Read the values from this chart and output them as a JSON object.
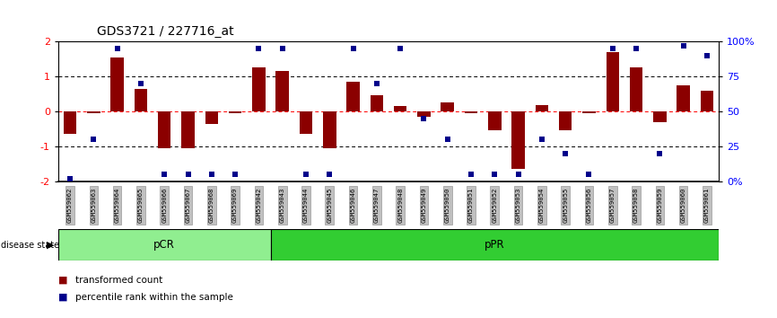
{
  "title": "GDS3721 / 227716_at",
  "samples": [
    "GSM559062",
    "GSM559063",
    "GSM559064",
    "GSM559065",
    "GSM559066",
    "GSM559067",
    "GSM559068",
    "GSM559069",
    "GSM559042",
    "GSM559043",
    "GSM559044",
    "GSM559045",
    "GSM559046",
    "GSM559047",
    "GSM559048",
    "GSM559049",
    "GSM559050",
    "GSM559051",
    "GSM559052",
    "GSM559053",
    "GSM559054",
    "GSM559055",
    "GSM559056",
    "GSM559057",
    "GSM559058",
    "GSM559059",
    "GSM559060",
    "GSM559061"
  ],
  "bar_values": [
    -0.65,
    -0.05,
    1.55,
    0.65,
    -1.05,
    -1.05,
    -0.35,
    -0.05,
    1.25,
    1.15,
    -0.65,
    -1.05,
    0.85,
    0.45,
    0.15,
    -0.15,
    0.25,
    -0.05,
    -0.55,
    -1.65,
    0.18,
    -0.55,
    -0.05,
    1.7,
    1.25,
    -0.3,
    0.75,
    0.6
  ],
  "dot_values_pct": [
    2,
    30,
    95,
    70,
    5,
    5,
    5,
    5,
    95,
    95,
    5,
    5,
    95,
    70,
    95,
    45,
    30,
    5,
    5,
    5,
    30,
    20,
    5,
    95,
    95,
    20,
    97,
    90
  ],
  "pCR_count": 9,
  "pPR_count": 19,
  "ylim": [
    -2.0,
    2.0
  ],
  "yticks_left": [
    -2,
    -1,
    0,
    1,
    2
  ],
  "right_yticks_pct": [
    0,
    25,
    50,
    75,
    100
  ],
  "right_ylabels": [
    "0%",
    "25",
    "50",
    "75",
    "100%"
  ],
  "bar_color": "#8B0000",
  "dot_color": "#00008B",
  "pCR_color": "#90EE90",
  "pPR_color": "#32CD32",
  "label_bg_color": "#C0C0C0",
  "legend_bar_label": "transformed count",
  "legend_dot_label": "percentile rank within the sample"
}
